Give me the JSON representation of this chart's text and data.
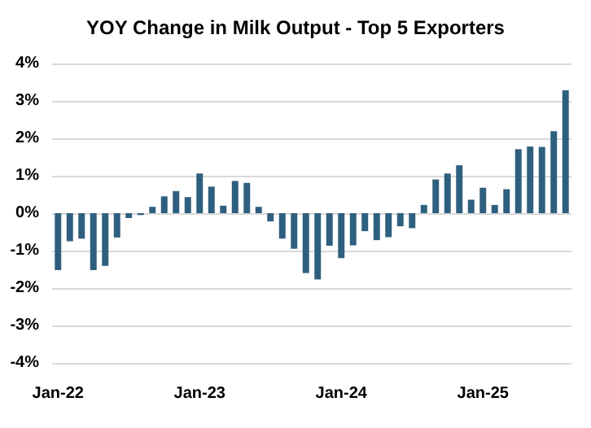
{
  "chart_data": {
    "type": "bar",
    "title": "YOY Change in Milk Output - Top 5 Exporters",
    "categories": [
      "Jan-22",
      null,
      null,
      null,
      null,
      null,
      null,
      null,
      null,
      null,
      null,
      null,
      "Jan-23",
      null,
      null,
      null,
      null,
      null,
      null,
      null,
      null,
      null,
      null,
      null,
      "Jan-24",
      null,
      null,
      null,
      null,
      null,
      null,
      null,
      null,
      null,
      null,
      null,
      "Jan-25",
      null,
      null,
      null,
      null,
      null,
      null,
      null
    ],
    "values": [
      -1.52,
      -0.75,
      -0.68,
      -1.52,
      -1.41,
      -0.65,
      -0.13,
      -0.05,
      0.17,
      0.45,
      0.59,
      0.43,
      1.06,
      0.71,
      0.2,
      0.86,
      0.81,
      0.17,
      -0.22,
      -0.68,
      -0.95,
      -1.6,
      -1.77,
      -0.87,
      -1.2,
      -0.86,
      -0.48,
      -0.72,
      -0.64,
      -0.35,
      -0.4,
      0.22,
      0.9,
      1.06,
      1.28,
      0.36,
      0.68,
      0.22,
      0.64,
      1.71,
      1.78,
      1.77,
      2.19,
      3.28
    ],
    "color": "#2f5f7f",
    "ylim": [
      -4,
      4
    ],
    "yticks": [
      {
        "value": -4,
        "label": "-4%"
      },
      {
        "value": -3,
        "label": "-3%"
      },
      {
        "value": -2,
        "label": "-2%"
      },
      {
        "value": -1,
        "label": "-1%"
      },
      {
        "value": 0,
        "label": "0%"
      },
      {
        "value": 1,
        "label": "1%"
      },
      {
        "value": 2,
        "label": "2%"
      },
      {
        "value": 3,
        "label": "3%"
      },
      {
        "value": 4,
        "label": "4%"
      }
    ],
    "grid": "y"
  }
}
